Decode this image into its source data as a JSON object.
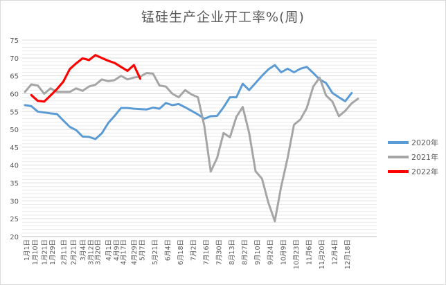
{
  "chart_data": {
    "type": "line",
    "title": "锰硅生产企业开工率%(周)",
    "xlabel": "",
    "ylabel": "",
    "ylim": [
      20,
      75
    ],
    "yticks": [
      20,
      25,
      30,
      35,
      40,
      45,
      50,
      55,
      60,
      65,
      70,
      75
    ],
    "grid": true,
    "legend_position": "right",
    "categories": [
      "1月1日",
      "1月10日",
      "1月21日",
      "1月29日",
      "2月11日",
      "2月21日",
      "3月4日",
      "3月12日",
      "3月20日",
      "4月1日",
      "4月9日",
      "4月17日",
      "4月29日",
      "5月7日",
      "5月21日",
      "6月4日",
      "6月18日",
      "7月2日",
      "7月16日",
      "7月30日",
      "8月13日",
      "8月27日",
      "9月10日",
      "9月24日",
      "10月9日",
      "10月23日",
      "11月6日",
      "11月20日",
      "12月4日",
      "12月18日"
    ],
    "x_weeks": [
      0.3,
      1.6,
      3.1,
      4.3,
      6.1,
      7.6,
      9.1,
      10.3,
      11.4,
      13.1,
      14.3,
      15.4,
      17.1,
      18.3,
      20.3,
      22.3,
      24.3,
      26.3,
      28.3,
      30.3,
      32.3,
      34.3,
      36.3,
      38.3,
      40.4,
      42.4,
      44.4,
      46.4,
      48.4,
      50.4
    ],
    "series": [
      {
        "name": "2020年",
        "color": "#5b9bd5",
        "x": [
          0,
          1,
          2,
          4,
          5,
          6,
          7,
          8,
          9,
          10,
          11,
          12,
          13,
          14,
          15,
          16,
          17,
          18,
          19,
          20,
          21,
          22,
          23,
          24,
          25,
          26,
          27,
          28,
          29,
          30,
          31,
          32,
          33,
          34,
          35,
          36,
          37,
          38,
          39,
          40,
          41,
          42,
          43,
          44,
          45,
          46,
          47,
          48,
          49,
          50,
          51
        ],
        "values": [
          56.8,
          56.5,
          55.0,
          54.5,
          54.3,
          52.5,
          50.7,
          49.8,
          48.0,
          47.9,
          47.3,
          48.9,
          51.8,
          53.8,
          56.0,
          56.0,
          55.8,
          55.7,
          55.6,
          56.1,
          55.8,
          57.4,
          56.8,
          57.1,
          56.2,
          55.2,
          54.2,
          53.0,
          53.7,
          53.8,
          56.2,
          59.0,
          59.0,
          62.8,
          61.0,
          63.0,
          65.0,
          66.8,
          68.0,
          66.0,
          67.0,
          66.0,
          67.0,
          67.5,
          65.8,
          64.0,
          63.0,
          60.2,
          59.0,
          57.9,
          60.2
        ]
      },
      {
        "name": "2021年",
        "color": "#a5a5a5",
        "x": [
          0,
          1,
          2,
          3,
          4,
          5,
          6,
          7,
          8,
          9,
          10,
          11,
          12,
          13,
          14,
          15,
          16,
          17,
          18,
          19,
          20,
          21,
          22,
          23,
          24,
          25,
          26,
          27,
          28,
          29,
          30,
          31,
          32,
          33,
          34,
          35,
          36,
          37,
          38,
          39,
          40,
          41,
          42,
          43,
          44,
          45,
          46,
          47,
          48,
          49,
          50,
          51,
          52
        ],
        "values": [
          60.5,
          62.6,
          62.3,
          60.0,
          61.5,
          60.5,
          60.5,
          60.5,
          61.5,
          60.8,
          62.0,
          62.5,
          64.0,
          63.5,
          63.8,
          65.0,
          64.0,
          64.5,
          64.8,
          65.8,
          65.6,
          62.3,
          62.0,
          60.0,
          59.0,
          61.0,
          59.8,
          59.0,
          51.0,
          38.2,
          42.0,
          49.0,
          47.8,
          53.5,
          56.3,
          49.0,
          38.3,
          36.2,
          29.5,
          24.3,
          34.0,
          42.0,
          51.3,
          52.8,
          56.0,
          62.0,
          64.5,
          59.5,
          57.8,
          53.7,
          55.2,
          57.3,
          58.6
        ]
      },
      {
        "name": "2022年",
        "color": "#ff0000",
        "x": [
          1,
          2,
          3,
          4,
          5,
          6,
          7,
          8,
          9,
          10,
          11,
          12,
          13,
          14,
          15,
          16,
          17,
          18
        ],
        "values": [
          59.6,
          58.0,
          57.8,
          59.5,
          61.3,
          63.4,
          66.9,
          68.5,
          69.9,
          69.4,
          70.8,
          70.0,
          69.2,
          68.6,
          67.5,
          66.4,
          68.0,
          64.2
        ]
      }
    ]
  }
}
